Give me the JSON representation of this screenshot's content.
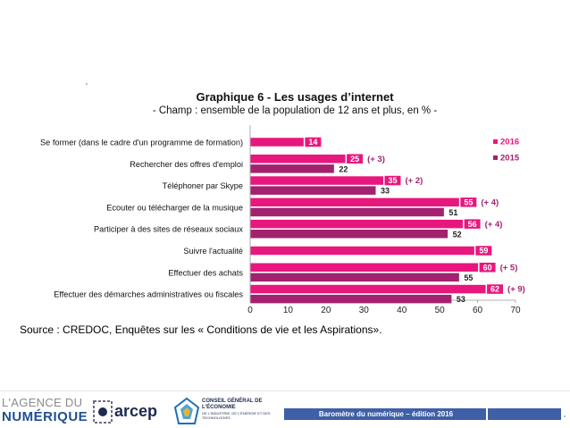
{
  "stray_mark": "ʼ",
  "chart_data": {
    "type": "bar",
    "orientation": "horizontal",
    "title": "Graphique  6 - Les usages d’internet",
    "subtitle": "- Champ : ensemble de la population de 12 ans et plus, en % -",
    "categories": [
      "Se former (dans le cadre d'un programme de formation)",
      "Rechercher des offres d'emploi",
      "Téléphoner par Skype",
      "Ecouter ou télécharger de la musique",
      "Participer à des sites de réseaux sociaux",
      "Suivre l'actualité",
      "Effectuer des achats",
      "Effectuer des démarches administratives ou fiscales"
    ],
    "series": [
      {
        "name": "2016",
        "color": "#e8177d",
        "values": [
          14,
          25,
          35,
          55,
          56,
          59,
          60,
          62
        ]
      },
      {
        "name": "2015",
        "color": "#a3226f",
        "values": [
          null,
          22,
          33,
          51,
          52,
          null,
          55,
          53
        ]
      }
    ],
    "annotations": [
      "",
      "(+ 3)",
      "(+ 2)",
      "(+ 4)",
      "(+ 4)",
      "",
      "(+ 5)",
      "(+ 9)"
    ],
    "xlim": [
      0,
      70
    ],
    "xticks": [
      "0",
      "10",
      "20",
      "30",
      "40",
      "50",
      "60",
      "70"
    ],
    "grid": false,
    "legend_position": "right"
  },
  "source": "Source : CREDOC, Enquêtes sur les « Conditions de vie et les Aspirations».",
  "footer": {
    "logo_agence_line1": "L'AGENCE DU",
    "logo_agence_line2": "NUMÉRIQUE",
    "logo_arcep": "arcep",
    "logo_cge_line1": "CONSEIL GÉNÉRAL DE L'ÉCONOMIE",
    "logo_cge_line2": "DE L'INDUSTRIE, DE L'ÉNERGIE ET DES TECHNOLOGIES",
    "band_text": "Baromètre  du numérique – édition 2016"
  }
}
